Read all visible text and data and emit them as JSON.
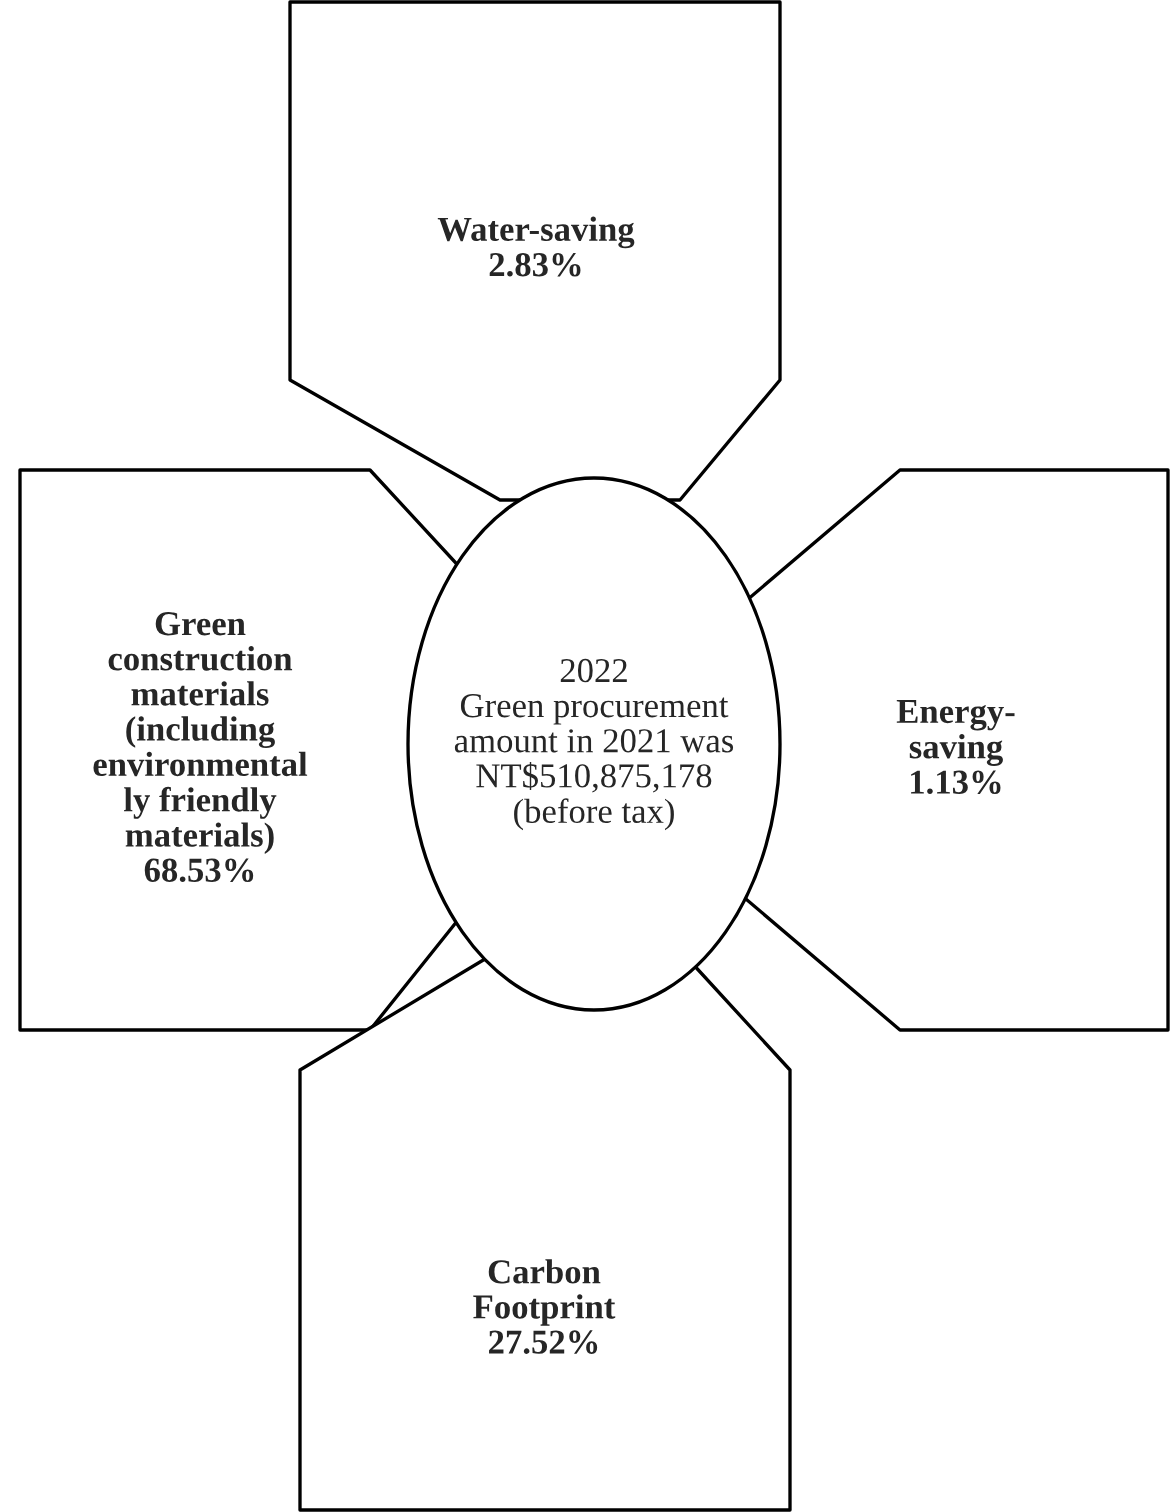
{
  "chart_data": {
    "type": "other",
    "categories": [
      "Water-saving",
      "Energy-saving",
      "Green construction materials (including environmentally friendly materials)",
      "Carbon Footprint"
    ],
    "values": [
      2.83,
      1.13,
      68.53,
      27.52
    ],
    "value_labels": [
      "2.83%",
      "1.13%",
      "68.53%",
      "27.52%"
    ],
    "annotations": [
      "2022",
      "Green procurement amount in 2021 was NT$510,875,178 (before tax)"
    ]
  }
}
